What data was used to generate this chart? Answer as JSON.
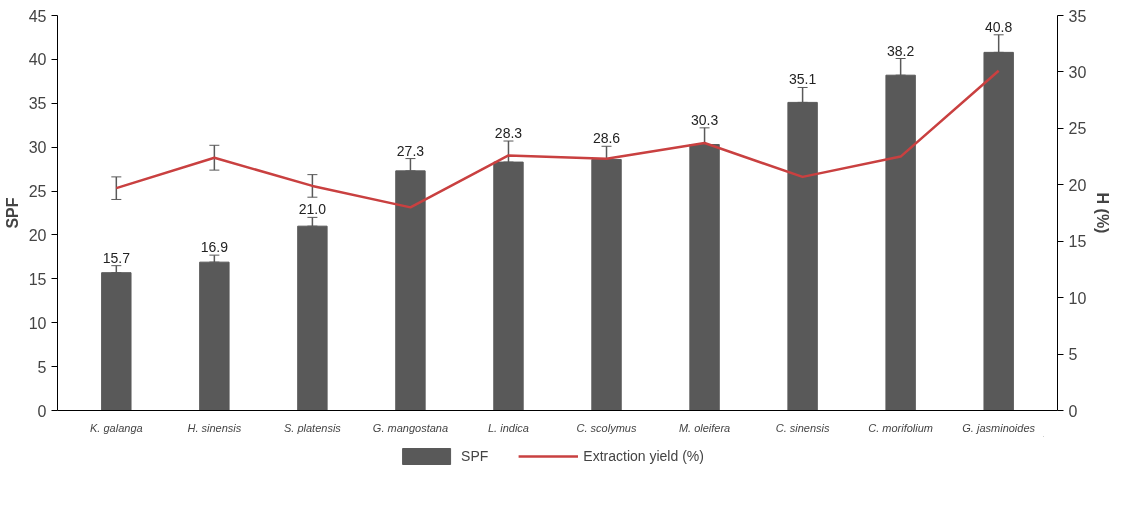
{
  "chart_data": {
    "type": "bar",
    "ylabel": "SPF",
    "y2label": "H (%)",
    "categories": [
      "K. galanga",
      "H. sinensis",
      "S. platensis",
      "G. mangostana",
      "L. indica",
      "C. scolymus",
      "M. oleifera",
      "C. sinensis",
      "C. morifolium",
      "G. jasminoides"
    ],
    "series": [
      {
        "name": "SPF",
        "color": "#595959",
        "values": [
          15.7,
          16.9,
          21.0,
          27.3,
          28.3,
          28.6,
          30.3,
          35.1,
          38.2,
          40.8
        ],
        "errors": [
          0.8,
          0.8,
          1.0,
          1.4,
          2.4,
          1.5,
          1.9,
          1.7,
          1.9,
          2.0
        ],
        "value_labels": [
          "15.7",
          "16.9",
          "21.0",
          "27.3",
          "28.3",
          "28.6",
          "30.3",
          "35.1",
          "38.2",
          "40.8"
        ]
      },
      {
        "name": "Extraction yield (%)",
        "type": "line",
        "axis": "y2",
        "color": "#c94040",
        "values": [
          19.7,
          22.4,
          19.9,
          18.0,
          22.6,
          22.3,
          23.7,
          20.7,
          22.5,
          30.1
        ],
        "errors": [
          1.0,
          1.1,
          1.0,
          null,
          null,
          null,
          null,
          null,
          null,
          null
        ]
      }
    ],
    "ylim": [
      0,
      45
    ],
    "yticks": [
      0,
      5,
      10,
      15,
      20,
      25,
      30,
      35,
      40,
      45
    ],
    "y2lim": [
      0,
      35
    ],
    "y2ticks": [
      0,
      5,
      10,
      15,
      20,
      25,
      30,
      35
    ],
    "grid": false,
    "legend": "bottom"
  }
}
